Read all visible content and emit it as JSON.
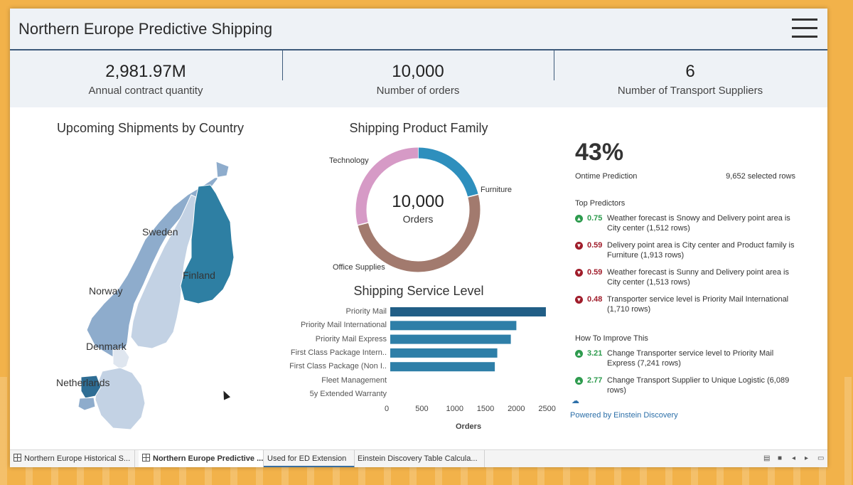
{
  "header": {
    "title": "Northern Europe Predictive Shipping"
  },
  "kpis": [
    {
      "value": "2,981.97M",
      "label": "Annual contract quantity"
    },
    {
      "value": "10,000",
      "label": "Number of orders"
    },
    {
      "value": "6",
      "label": "Number of Transport Suppliers"
    }
  ],
  "map": {
    "title": "Upcoming Shipments by Country",
    "countries": [
      "Sweden",
      "Finland",
      "Norway",
      "Denmark",
      "Netherlands"
    ]
  },
  "donut": {
    "title": "Shipping Product Family",
    "center_value": "10,000",
    "center_label": "Orders",
    "labels": [
      "Technology",
      "Furniture",
      "Office Supplies"
    ],
    "colors": [
      "#2e8fbd",
      "#a27a6e",
      "#d69ac6"
    ]
  },
  "bars": {
    "title": "Shipping Service Level",
    "xlabel": "Orders",
    "ticks": [
      "0",
      "500",
      "1000",
      "1500",
      "2000",
      "2500"
    ]
  },
  "chart_data": [
    {
      "type": "pie",
      "title": "Shipping Product Family",
      "categories": [
        "Technology",
        "Furniture",
        "Office Supplies"
      ],
      "values": [
        2100,
        5000,
        2900
      ]
    },
    {
      "type": "bar",
      "title": "Shipping Service Level",
      "xlabel": "Orders",
      "xlim": [
        0,
        2600
      ],
      "categories": [
        "Priority Mail",
        "Priority Mail International",
        "Priority Mail Express",
        "First Class Package Intern..",
        "First Class Package (Non I..",
        "Fleet Management",
        "5y Extended Warranty"
      ],
      "values": [
        2530,
        2050,
        1960,
        1740,
        1700,
        0,
        0
      ]
    }
  ],
  "einstein": {
    "percent": "43%",
    "label": "Ontime Prediction",
    "selected_rows": "9,652 selected rows",
    "top_predictors_title": "Top Predictors",
    "top_predictors": [
      {
        "value": "0.75",
        "direction": "up",
        "text": "Weather forecast is Snowy and Delivery point area is City center (1,512 rows)"
      },
      {
        "value": "0.59",
        "direction": "down",
        "text": "Delivery point area is City center and Product family is Furniture (1,913 rows)"
      },
      {
        "value": "0.59",
        "direction": "down",
        "text": "Weather forecast is Sunny and Delivery point area is City center (1,513 rows)"
      },
      {
        "value": "0.48",
        "direction": "down",
        "text": "Transporter service level is Priority Mail International (1,710 rows)"
      }
    ],
    "improve_title": "How To Improve This",
    "improvements": [
      {
        "value": "3.21",
        "direction": "up",
        "text": "Change Transporter service level to Priority Mail Express (7,241 rows)"
      },
      {
        "value": "2.77",
        "direction": "up",
        "text": "Change Transport Supplier to Unique Logistic (6,089 rows)"
      }
    ],
    "powered_by": "Powered by Einstein Discovery"
  },
  "tabs": [
    "Northern Europe Historical S...",
    "Northern Europe Predictive ...",
    "Used for ED Extension",
    "Einstein Discovery Table Calcula..."
  ]
}
